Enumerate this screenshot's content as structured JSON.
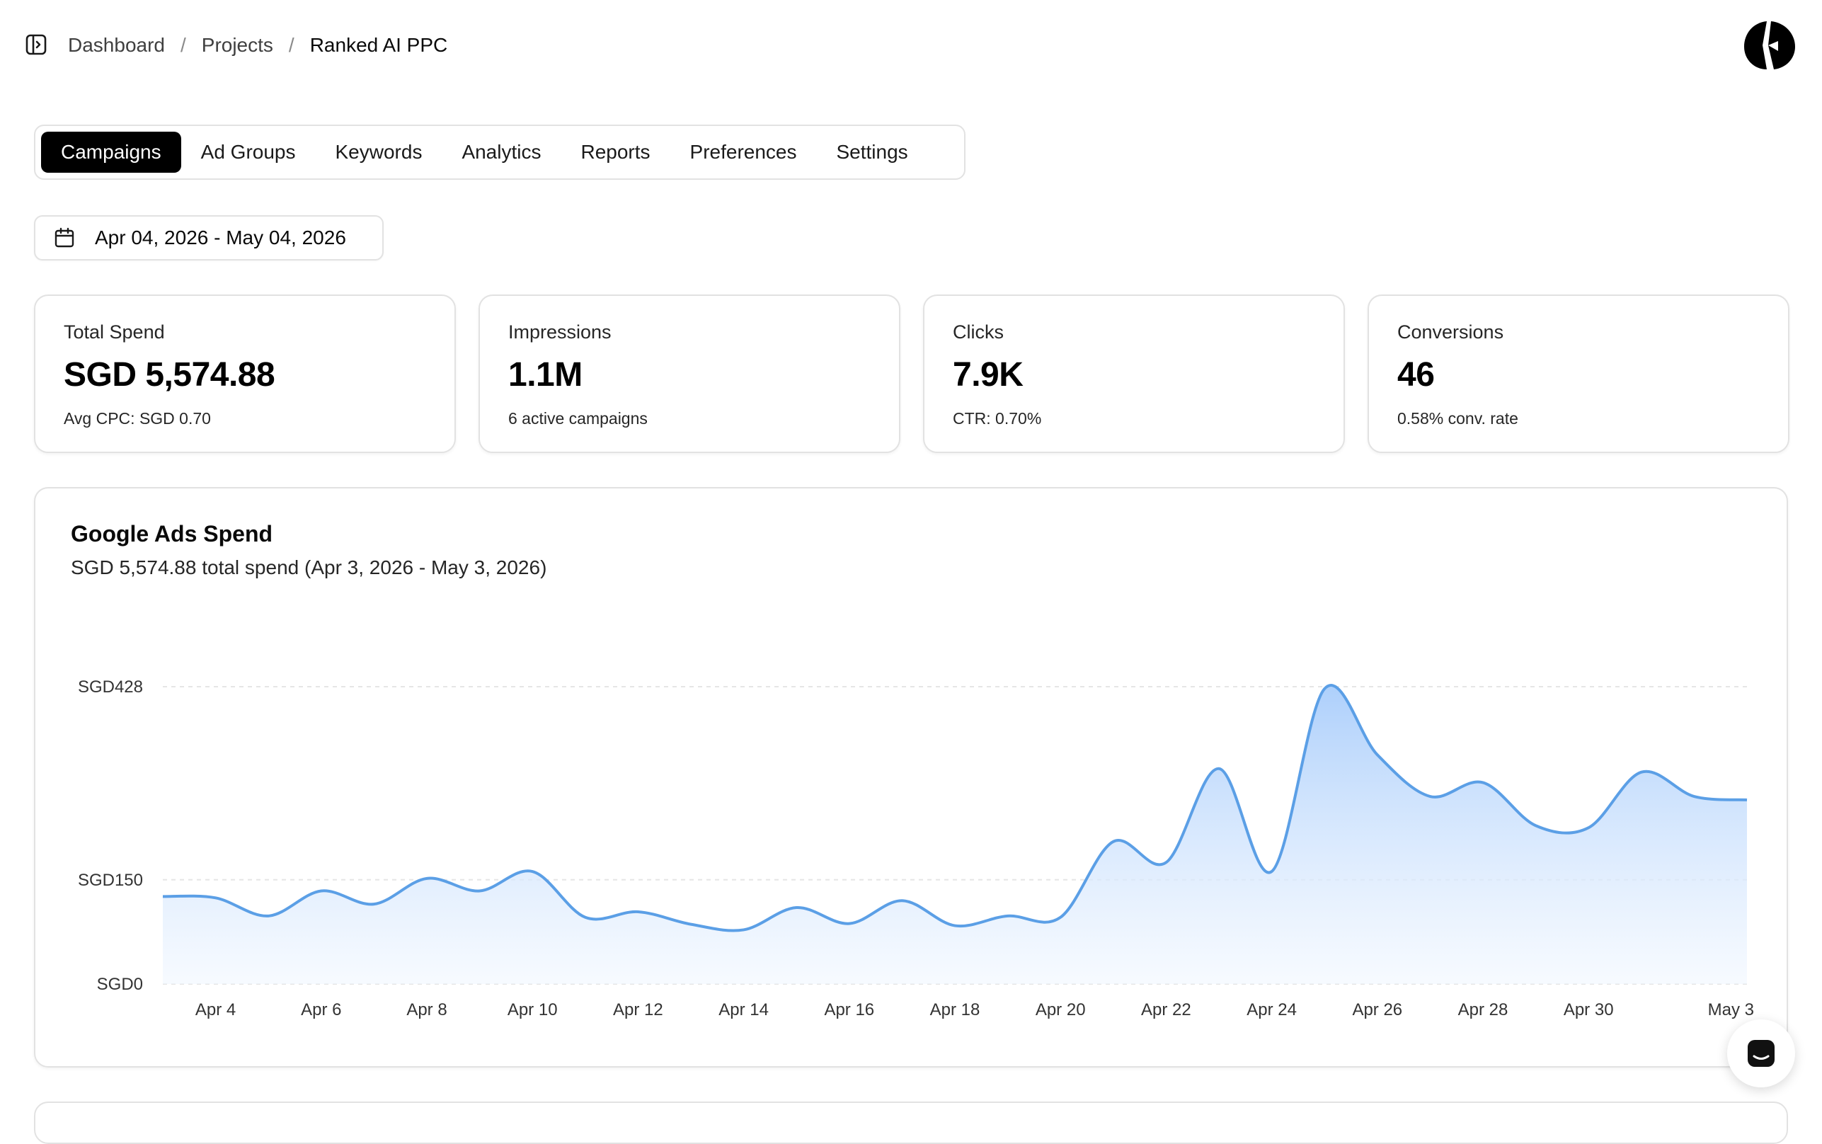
{
  "breadcrumb": {
    "items": [
      "Dashboard",
      "Projects",
      "Ranked AI PPC"
    ],
    "separator": "/"
  },
  "tabs": [
    {
      "label": "Campaigns",
      "active": true
    },
    {
      "label": "Ad Groups",
      "active": false
    },
    {
      "label": "Keywords",
      "active": false
    },
    {
      "label": "Analytics",
      "active": false
    },
    {
      "label": "Reports",
      "active": false
    },
    {
      "label": "Preferences",
      "active": false
    },
    {
      "label": "Settings",
      "active": false
    }
  ],
  "date_range": {
    "label": "Apr 04, 2026 - May 04, 2026",
    "icon": "calendar-icon"
  },
  "stats": [
    {
      "label": "Total Spend",
      "value": "SGD 5,574.88",
      "sub": "Avg CPC: SGD 0.70"
    },
    {
      "label": "Impressions",
      "value": "1.1M",
      "sub": "6 active campaigns"
    },
    {
      "label": "Clicks",
      "value": "7.9K",
      "sub": "CTR: 0.70%"
    },
    {
      "label": "Conversions",
      "value": "46",
      "sub": "0.58% conv. rate"
    }
  ],
  "chart": {
    "title": "Google Ads Spend",
    "subtitle": "SGD 5,574.88 total spend (Apr 3, 2026 - May 3, 2026)"
  },
  "chart_data": {
    "type": "area",
    "title": "Google Ads Spend",
    "subtitle": "SGD 5,574.88 total spend (Apr 3, 2026 - May 3, 2026)",
    "x": [
      "Apr 3",
      "Apr 4",
      "Apr 5",
      "Apr 6",
      "Apr 7",
      "Apr 8",
      "Apr 9",
      "Apr 10",
      "Apr 11",
      "Apr 12",
      "Apr 13",
      "Apr 14",
      "Apr 15",
      "Apr 16",
      "Apr 17",
      "Apr 18",
      "Apr 19",
      "Apr 20",
      "Apr 21",
      "Apr 22",
      "Apr 23",
      "Apr 24",
      "Apr 25",
      "Apr 26",
      "Apr 27",
      "Apr 28",
      "Apr 29",
      "Apr 30",
      "May 1",
      "May 2",
      "May 3"
    ],
    "series": [
      {
        "values": [
          126,
          124,
          98,
          134,
          115,
          152,
          134,
          162,
          96,
          104,
          86,
          78,
          110,
          87,
          120,
          84,
          98,
          96,
          205,
          175,
          310,
          162,
          425,
          330,
          270,
          290,
          228,
          225,
          305,
          270,
          265
        ]
      }
    ],
    "x_tick_labels": [
      "Apr 4",
      "Apr 6",
      "Apr 8",
      "Apr 10",
      "Apr 12",
      "Apr 14",
      "Apr 16",
      "Apr 18",
      "Apr 20",
      "Apr 22",
      "Apr 24",
      "Apr 26",
      "Apr 28",
      "Apr 30",
      "May 3"
    ],
    "y_tick_labels": [
      "SGD0",
      "SGD150",
      "SGD428"
    ],
    "y_ticks": [
      0,
      150,
      428
    ],
    "ylim": [
      0,
      428
    ],
    "grid": true,
    "legend": false,
    "colors": {
      "line": "#5b9fe6",
      "fill_top": "#a9cdfb",
      "fill_bottom": "#f1f7ff"
    }
  },
  "colors": {
    "accent": "#000000",
    "border": "#e2e2e2"
  },
  "icons": {
    "sidebar_toggle": "sidebar-toggle-icon",
    "avatar": "brand-logo-avatar",
    "chat": "chat-icon"
  }
}
